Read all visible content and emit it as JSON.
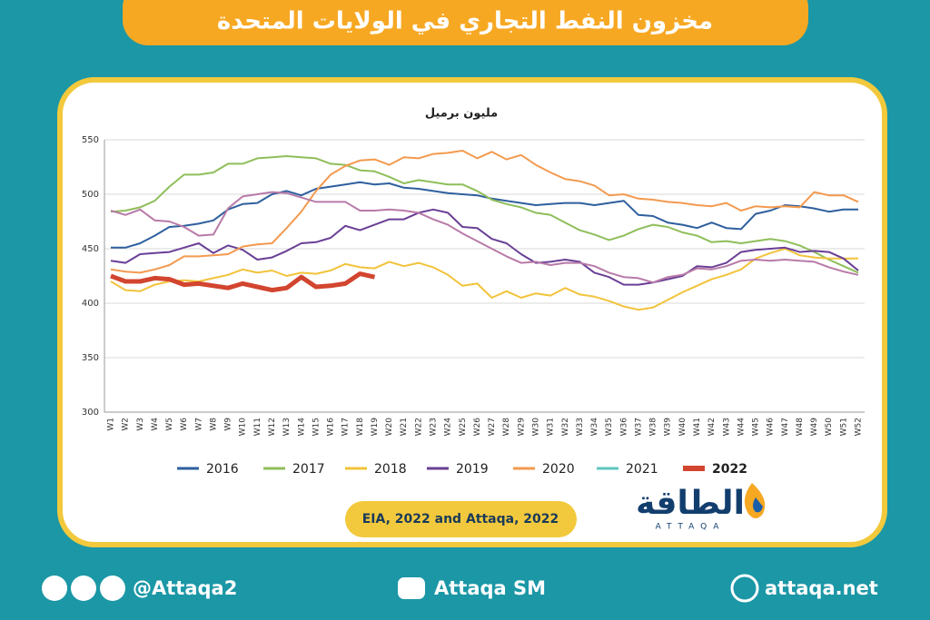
{
  "chart_data": {
    "type": "line",
    "title": "مخزون النفط التجاري في الولايات المتحدة",
    "subtitle": "مليون برميل",
    "source": "EIA, 2022 and Attaqa, 2022",
    "categories": [
      "W1",
      "W2",
      "W3",
      "W4",
      "W5",
      "W6",
      "W7",
      "W8",
      "W9",
      "W10",
      "W11",
      "W12",
      "W13",
      "W14",
      "W15",
      "W16",
      "W17",
      "W18",
      "W19",
      "W20",
      "W21",
      "W22",
      "W23",
      "W24",
      "W25",
      "W26",
      "W27",
      "W28",
      "W29",
      "W30",
      "W31",
      "W32",
      "W33",
      "W34",
      "W35",
      "W36",
      "W37",
      "W38",
      "W39",
      "W40",
      "W41",
      "W42",
      "W43",
      "W44",
      "W45",
      "W46",
      "W47",
      "W48",
      "W49",
      "W50",
      "W51",
      "W52"
    ],
    "ylim": [
      300,
      550
    ],
    "yticks": [
      300,
      350,
      400,
      450,
      500,
      550
    ],
    "grid": true,
    "series": [
      {
        "name": "2016",
        "color": "#2e5f9e",
        "linewidth": 2,
        "values": [
          451,
          451,
          455,
          462,
          470,
          471,
          473,
          476,
          486,
          491,
          492,
          500,
          503,
          499,
          505,
          507,
          509,
          511,
          509,
          510,
          506,
          505,
          503,
          501,
          500,
          499,
          496,
          494,
          492,
          490,
          491,
          492,
          492,
          490,
          492,
          494,
          481,
          480,
          474,
          472,
          469,
          474,
          469,
          468,
          482,
          485,
          490,
          489,
          487,
          484,
          486,
          486
        ]
      },
      {
        "name": "2017",
        "color": "#8fbe5a",
        "linewidth": 2,
        "values": [
          484,
          485,
          488,
          494,
          507,
          518,
          518,
          520,
          528,
          528,
          533,
          534,
          535,
          534,
          533,
          528,
          527,
          522,
          521,
          516,
          510,
          513,
          511,
          509,
          509,
          503,
          495,
          491,
          488,
          483,
          481,
          474,
          467,
          463,
          458,
          462,
          468,
          472,
          470,
          465,
          462,
          456,
          457,
          455,
          457,
          459,
          457,
          453,
          447,
          440,
          434,
          428
        ]
      },
      {
        "name": "2018",
        "color": "#f2c33a",
        "linewidth": 2,
        "values": [
          420,
          412,
          411,
          417,
          420,
          421,
          420,
          423,
          426,
          431,
          428,
          430,
          425,
          428,
          427,
          430,
          436,
          433,
          432,
          438,
          434,
          437,
          433,
          426,
          416,
          418,
          405,
          411,
          405,
          409,
          407,
          414,
          408,
          406,
          402,
          397,
          394,
          396,
          403,
          410,
          416,
          422,
          426,
          431,
          441,
          446,
          450,
          444,
          442,
          441,
          441,
          441
        ]
      },
      {
        "name": "2019",
        "color": "#6a3f96",
        "linewidth": 2,
        "values": [
          439,
          437,
          445,
          446,
          447,
          451,
          455,
          446,
          453,
          449,
          440,
          442,
          448,
          455,
          456,
          460,
          471,
          467,
          472,
          477,
          477,
          483,
          486,
          483,
          470,
          469,
          459,
          455,
          445,
          437,
          438,
          440,
          438,
          428,
          424,
          417,
          417,
          419,
          422,
          425,
          434,
          433,
          437,
          447,
          449,
          450,
          451,
          447,
          448,
          447,
          441,
          430
        ]
      },
      {
        "name": "2020",
        "color": "#f39a4f",
        "linewidth": 2,
        "values": [
          431,
          429,
          428,
          431,
          435,
          443,
          443,
          444,
          445,
          452,
          454,
          455,
          469,
          484,
          503,
          518,
          526,
          531,
          532,
          527,
          534,
          533,
          537,
          538,
          540,
          533,
          539,
          532,
          536,
          527,
          520,
          514,
          512,
          508,
          499,
          500,
          496,
          495,
          493,
          492,
          490,
          489,
          492,
          485,
          489,
          488,
          489,
          488,
          502,
          499,
          499,
          493
        ]
      },
      {
        "name": "2021",
        "color": "#b87aa8",
        "legend_color": "#5fc6c0",
        "linewidth": 2,
        "values": [
          485,
          481,
          486,
          476,
          475,
          470,
          462,
          463,
          487,
          498,
          500,
          502,
          501,
          497,
          493,
          493,
          493,
          485,
          485,
          486,
          485,
          483,
          477,
          472,
          464,
          457,
          450,
          443,
          437,
          438,
          435,
          437,
          437,
          434,
          428,
          424,
          423,
          419,
          424,
          426,
          432,
          431,
          434,
          439,
          440,
          439,
          440,
          439,
          438,
          433,
          429,
          426
        ]
      },
      {
        "name": "2022",
        "color": "#d2452f",
        "linewidth": 5,
        "values": [
          425,
          420,
          420,
          423,
          422,
          417,
          418,
          416,
          414,
          418,
          415,
          412,
          414,
          424,
          415,
          416,
          418,
          427,
          424,
          null,
          null,
          null,
          null,
          null,
          null,
          null,
          null,
          null,
          null,
          null,
          null,
          null,
          null,
          null,
          null,
          null,
          null,
          null,
          null,
          null,
          null,
          null,
          null,
          null,
          null,
          null,
          null,
          null,
          null,
          null,
          null,
          null
        ]
      }
    ]
  },
  "logo": {
    "arabic": "الطاقة",
    "latin": "ATTAQA"
  },
  "footer": {
    "social": "@Attaqa2",
    "youtube": "Attaqa SM",
    "website": "attaqa.net"
  }
}
